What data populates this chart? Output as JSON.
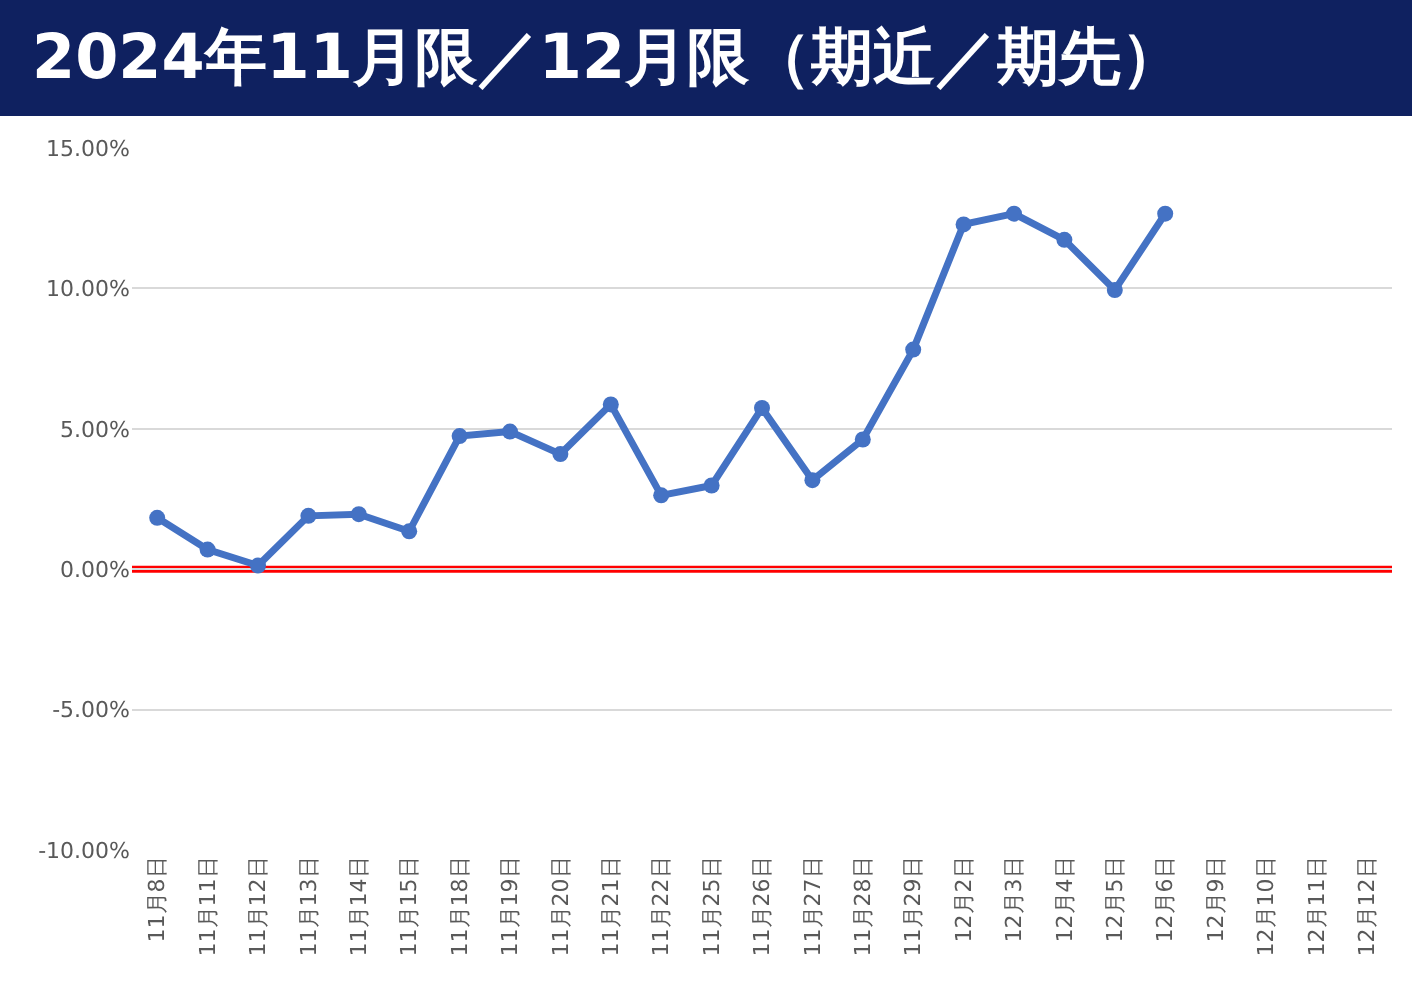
{
  "chart_data": {
    "type": "line",
    "title": "2024年11月限／12月限（期近／期先）",
    "categories": [
      "11月8日",
      "11月11日",
      "11月12日",
      "11月13日",
      "11月14日",
      "11月15日",
      "11月18日",
      "11月19日",
      "11月20日",
      "11月21日",
      "11月22日",
      "11月25日",
      "11月26日",
      "11月27日",
      "11月28日",
      "11月29日",
      "12月2日",
      "12月3日",
      "12月4日",
      "12月5日",
      "12月6日",
      "12月9日",
      "12月10日",
      "12月11日",
      "12月12日"
    ],
    "series": [
      {
        "color": "#4472c4",
        "values": [
          1.83,
          0.7,
          0.13,
          1.9,
          1.96,
          1.35,
          4.74,
          4.9,
          4.1,
          5.87,
          2.63,
          2.98,
          5.74,
          3.17,
          4.62,
          7.82,
          12.28,
          12.66,
          11.73,
          9.94,
          12.66,
          null,
          null,
          null,
          null
        ]
      }
    ],
    "ylim": [
      -10,
      15
    ],
    "yticks": [
      {
        "value": -10,
        "label": "-10.00%"
      },
      {
        "value": -5,
        "label": "-5.00%"
      },
      {
        "value": 0,
        "label": "0.00%"
      },
      {
        "value": 5,
        "label": "5.00%"
      },
      {
        "value": 10,
        "label": "10.00%"
      },
      {
        "value": 15,
        "label": "15.00%"
      }
    ],
    "ref_lines": [
      {
        "axis": "y",
        "value": 0,
        "color": "#ff0000"
      }
    ],
    "grid": "y",
    "marker": "circle",
    "line_style": "solid"
  }
}
